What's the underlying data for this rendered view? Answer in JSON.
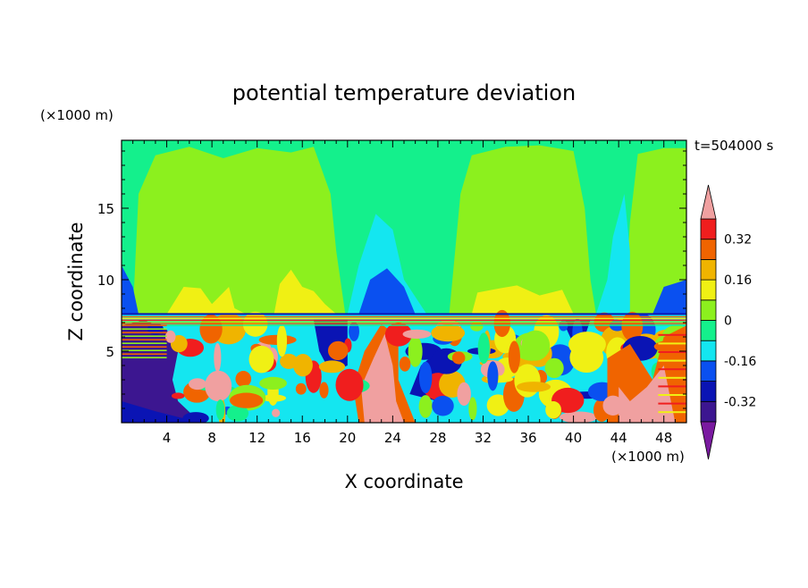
{
  "chart_data": {
    "type": "heatmap",
    "title": "potential temperature deviation",
    "xlabel": "X coordinate",
    "ylabel": "Z coordinate",
    "x_unit_label": "(×1000 m)",
    "y_unit_label": "(×1000 m)",
    "time_label": "t=504000 s",
    "xlim": [
      0,
      50
    ],
    "ylim": [
      0,
      19.75
    ],
    "x_ticks": [
      4,
      8,
      12,
      16,
      20,
      24,
      28,
      32,
      36,
      40,
      44,
      48
    ],
    "y_ticks": [
      5,
      10,
      15
    ],
    "colorbar": {
      "levels": [
        -0.4,
        -0.32,
        -0.24,
        -0.16,
        -0.08,
        0,
        0.08,
        0.16,
        0.24,
        0.32,
        0.4
      ],
      "tick_labels": [
        "0.32",
        "0.16",
        "0",
        "-0.16",
        "-0.32"
      ],
      "tick_values": [
        0.32,
        0.16,
        0,
        -0.16,
        -0.32
      ],
      "colors": [
        "#7a1aa0",
        "#3c1690",
        "#0a14b4",
        "#0a50f0",
        "#14e6f0",
        "#14f08c",
        "#8cf01e",
        "#f0f014",
        "#f0b400",
        "#f06400",
        "#f01e1e",
        "#f0a0a0"
      ]
    },
    "regions": [
      {
        "level": 1,
        "z": [
          0,
          6.5
        ],
        "x": [
          0.5,
          4.5
        ]
      },
      {
        "level": 4,
        "z": [
          0,
          6.5
        ],
        "x": [
          21.5,
          24.5
        ]
      },
      {
        "level": 4,
        "z": [
          0,
          3
        ],
        "x": [
          42.5,
          50
        ]
      },
      {
        "level": 11,
        "z": [
          0,
          5
        ],
        "x": [
          21,
          24
        ]
      },
      {
        "level": 6,
        "z": [
          8,
          19.75
        ],
        "x": [
          2,
          19
        ]
      },
      {
        "level": 6,
        "z": [
          8,
          19.75
        ],
        "x": [
          28,
          42
        ]
      }
    ],
    "grid": false
  },
  "figure": {
    "y_axis_label_color": "#000000",
    "background": "#ffffff"
  }
}
